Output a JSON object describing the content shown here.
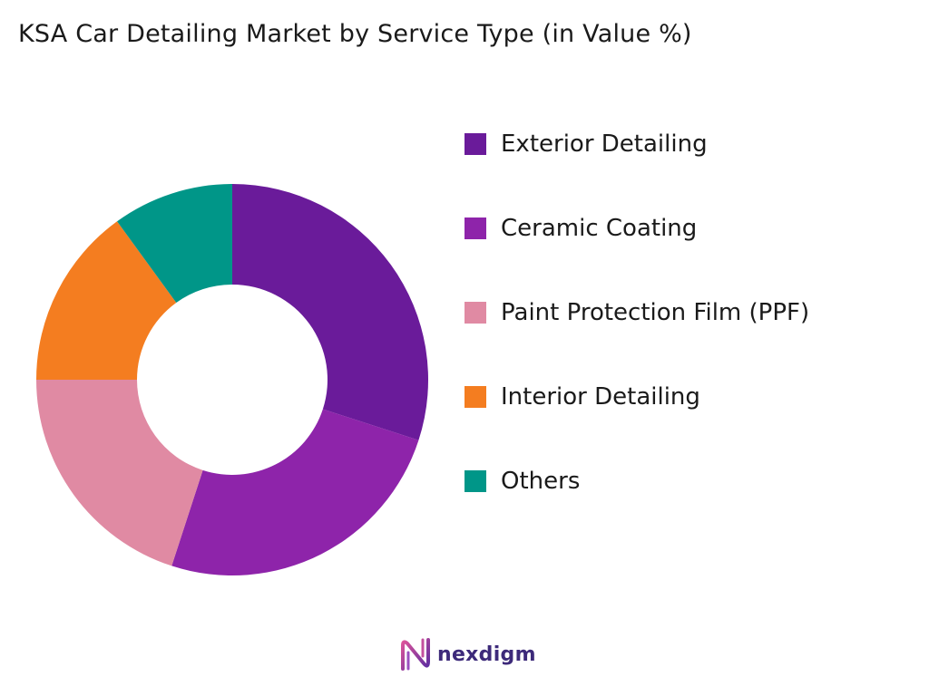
{
  "chart_data": {
    "type": "pie",
    "variant": "donut",
    "title": "KSA Car Detailing Market by Service Type (in Value %)",
    "categories": [
      "Exterior Detailing",
      "Ceramic Coating",
      "Paint Protection Film (PPF)",
      "Interior Detailing",
      "Others"
    ],
    "values": [
      30,
      25,
      20,
      15,
      10
    ],
    "colors": [
      "#6a1b9a",
      "#8e24aa",
      "#e08aa3",
      "#f47d20",
      "#009688"
    ],
    "legend_position": "right",
    "start_angle_deg": 0,
    "direction": "clockwise"
  },
  "branding": {
    "logo_text": "nexdigm",
    "logo_mark_icon": "nexdigm-mark-icon"
  }
}
